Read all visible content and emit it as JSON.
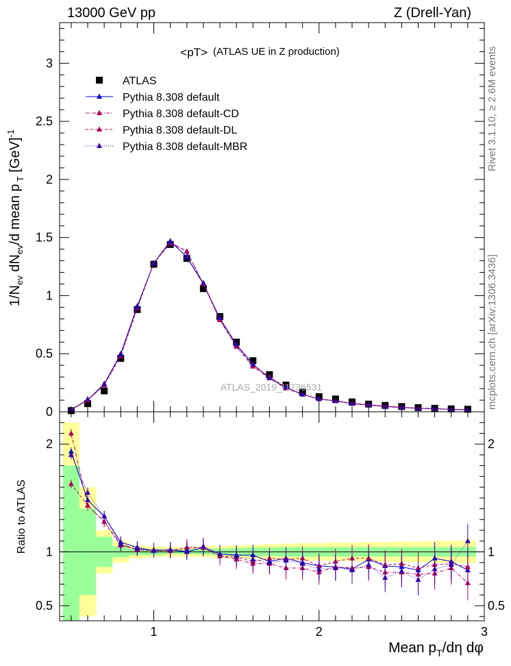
{
  "header": {
    "left": "13000 GeV pp",
    "right": "Z (Drell-Yan)"
  },
  "plot_title": "<pT>",
  "plot_subtitle": "(ATLAS UE in Z production)",
  "watermark": "ATLAS_2019_I1736531",
  "side_labels": {
    "rivet": "Rivet 3.1.10, ≥ 2.6M events",
    "mcplots": "mcplots.cern.ch [arXiv:1306.3436]"
  },
  "chart_data": [
    {
      "type": "scatter",
      "title": "<pT> (ATLAS UE in Z production)",
      "ylabel": "1/N_ev dN_ev/d mean p_T [GeV]^-1",
      "xlim": [
        0.43,
        3.0
      ],
      "ylim": [
        0,
        3.35
      ],
      "yticks": [
        "0",
        "0.5",
        "1",
        "1.5",
        "2",
        "2.5",
        "3"
      ],
      "x": [
        0.5,
        0.6,
        0.7,
        0.8,
        0.9,
        1.0,
        1.1,
        1.2,
        1.3,
        1.4,
        1.5,
        1.6,
        1.7,
        1.8,
        1.9,
        2.0,
        2.1,
        2.2,
        2.3,
        2.4,
        2.5,
        2.6,
        2.7,
        2.8,
        2.9
      ],
      "series": [
        {
          "name": "ATLAS",
          "color": "#000000",
          "marker": "square",
          "values": [
            0.01,
            0.07,
            0.18,
            0.46,
            0.88,
            1.27,
            1.44,
            1.32,
            1.06,
            0.82,
            0.6,
            0.44,
            0.32,
            0.23,
            0.17,
            0.13,
            0.11,
            0.085,
            0.066,
            0.055,
            0.045,
            0.036,
            0.03,
            0.025,
            0.022
          ]
        },
        {
          "name": "Pythia 8.308 default",
          "color": "#0000cc",
          "marker": "triangle",
          "dash": "",
          "values": [
            0.019,
            0.1,
            0.24,
            0.5,
            0.91,
            1.28,
            1.47,
            1.33,
            1.1,
            0.8,
            0.58,
            0.41,
            0.29,
            0.21,
            0.15,
            0.11,
            0.094,
            0.07,
            0.06,
            0.047,
            0.038,
            0.03,
            0.028,
            0.021,
            0.018
          ]
        },
        {
          "name": "Pythia 8.308 default-CD",
          "color": "#b0005a",
          "marker": "triangle",
          "dash": "5,2,1,2",
          "values": [
            0.021,
            0.1,
            0.23,
            0.49,
            0.9,
            1.28,
            1.46,
            1.38,
            1.1,
            0.79,
            0.56,
            0.39,
            0.29,
            0.2,
            0.15,
            0.11,
            0.093,
            0.071,
            0.058,
            0.045,
            0.037,
            0.03,
            0.026,
            0.021,
            0.016
          ]
        },
        {
          "name": "Pythia 8.308 default-DL",
          "color": "#b0005a",
          "marker": "triangle",
          "dash": "4,3",
          "values": [
            0.016,
            0.1,
            0.23,
            0.48,
            0.89,
            1.28,
            1.45,
            1.38,
            1.1,
            0.79,
            0.57,
            0.4,
            0.3,
            0.21,
            0.15,
            0.11,
            0.096,
            0.073,
            0.062,
            0.048,
            0.04,
            0.031,
            0.026,
            0.022,
            0.019
          ]
        },
        {
          "name": "Pythia 8.308 default-MBR",
          "color": "#3300aa",
          "marker": "triangle",
          "dash": "1,2",
          "values": [
            0.019,
            0.11,
            0.24,
            0.49,
            0.9,
            1.28,
            1.46,
            1.34,
            1.11,
            0.81,
            0.58,
            0.41,
            0.29,
            0.21,
            0.15,
            0.11,
            0.093,
            0.07,
            0.058,
            0.043,
            0.037,
            0.027,
            0.025,
            0.022,
            0.02
          ]
        }
      ]
    },
    {
      "type": "scatter",
      "ylabel": "Ratio to ATLAS",
      "xlabel": "Mean p_T/dη dφ",
      "xlim": [
        0.43,
        3.0
      ],
      "ylim": [
        0.36,
        2.3
      ],
      "yticks": [
        "0.5",
        "1",
        "2"
      ],
      "xticks": [
        "1",
        "2",
        "3"
      ],
      "x": [
        0.5,
        0.6,
        0.7,
        0.8,
        0.9,
        1.0,
        1.1,
        1.2,
        1.3,
        1.4,
        1.5,
        1.6,
        1.7,
        1.8,
        1.9,
        2.0,
        2.1,
        2.2,
        2.3,
        2.4,
        2.5,
        2.6,
        2.7,
        2.8,
        2.9
      ],
      "band_inner": [
        [
          0.2,
          1.8
        ],
        [
          0.6,
          1.4
        ],
        [
          0.86,
          1.14
        ],
        [
          0.95,
          1.05
        ],
        [
          0.97,
          1.03
        ],
        [
          0.97,
          1.03
        ],
        [
          0.98,
          1.02
        ],
        [
          0.98,
          1.02
        ],
        [
          0.975,
          1.025
        ],
        [
          0.97,
          1.03
        ],
        [
          0.965,
          1.035
        ],
        [
          0.96,
          1.04
        ],
        [
          0.96,
          1.04
        ],
        [
          0.955,
          1.045
        ],
        [
          0.955,
          1.045
        ],
        [
          0.955,
          1.045
        ],
        [
          0.955,
          1.045
        ],
        [
          0.955,
          1.045
        ],
        [
          0.955,
          1.045
        ],
        [
          0.955,
          1.045
        ],
        [
          0.955,
          1.045
        ],
        [
          0.955,
          1.045
        ],
        [
          0.955,
          1.045
        ],
        [
          0.955,
          1.045
        ],
        [
          0.955,
          1.045
        ]
      ],
      "band_outer": [
        [
          0.2,
          2.2
        ],
        [
          0.4,
          1.6
        ],
        [
          0.8,
          1.2
        ],
        [
          0.9,
          1.1
        ],
        [
          0.94,
          1.06
        ],
        [
          0.95,
          1.05
        ],
        [
          0.955,
          1.045
        ],
        [
          0.955,
          1.045
        ],
        [
          0.95,
          1.05
        ],
        [
          0.945,
          1.055
        ],
        [
          0.94,
          1.06
        ],
        [
          0.935,
          1.065
        ],
        [
          0.93,
          1.07
        ],
        [
          0.925,
          1.075
        ],
        [
          0.92,
          1.08
        ],
        [
          0.92,
          1.08
        ],
        [
          0.915,
          1.085
        ],
        [
          0.915,
          1.085
        ],
        [
          0.91,
          1.09
        ],
        [
          0.91,
          1.09
        ],
        [
          0.905,
          1.095
        ],
        [
          0.905,
          1.095
        ],
        [
          0.9,
          1.1
        ],
        [
          0.9,
          1.1
        ],
        [
          0.895,
          1.105
        ]
      ],
      "series": [
        {
          "name": "Pythia 8.308 default",
          "color": "#0000cc",
          "dash": "",
          "values": [
            1.93,
            1.48,
            1.33,
            1.09,
            1.04,
            1.01,
            1.02,
            1.0,
            1.04,
            0.98,
            0.97,
            0.97,
            0.91,
            0.94,
            0.9,
            0.87,
            0.86,
            0.84,
            0.93,
            0.87,
            0.86,
            0.83,
            0.94,
            0.91,
            0.83
          ]
        },
        {
          "name": "Pythia 8.308 default-CD",
          "color": "#b0005a",
          "dash": "5,2,1,2",
          "values": [
            2.1,
            1.43,
            1.28,
            1.07,
            1.02,
            1.01,
            1.01,
            1.04,
            1.04,
            0.96,
            0.93,
            0.89,
            0.89,
            0.85,
            0.85,
            0.81,
            0.86,
            0.85,
            0.86,
            0.81,
            0.81,
            0.79,
            0.8,
            0.85,
            0.71
          ]
        },
        {
          "name": "Pythia 8.308 default-DL",
          "color": "#b0005a",
          "dash": "4,3",
          "values": [
            1.63,
            1.43,
            1.28,
            1.06,
            1.02,
            1.02,
            1.01,
            1.04,
            1.04,
            0.96,
            0.95,
            0.91,
            0.94,
            0.93,
            0.94,
            0.87,
            0.91,
            0.94,
            0.94,
            0.88,
            0.89,
            0.85,
            0.88,
            0.89,
            0.86
          ]
        },
        {
          "name": "Pythia 8.308 default-MBR",
          "color": "#3300aa",
          "dash": "1,2",
          "values": [
            1.9,
            1.55,
            1.33,
            1.07,
            1.03,
            1.01,
            1.02,
            1.01,
            1.05,
            0.98,
            0.96,
            0.93,
            0.9,
            0.92,
            0.89,
            0.84,
            0.85,
            0.83,
            0.88,
            0.76,
            0.82,
            0.74,
            0.84,
            0.88,
            1.1
          ]
        }
      ]
    }
  ]
}
